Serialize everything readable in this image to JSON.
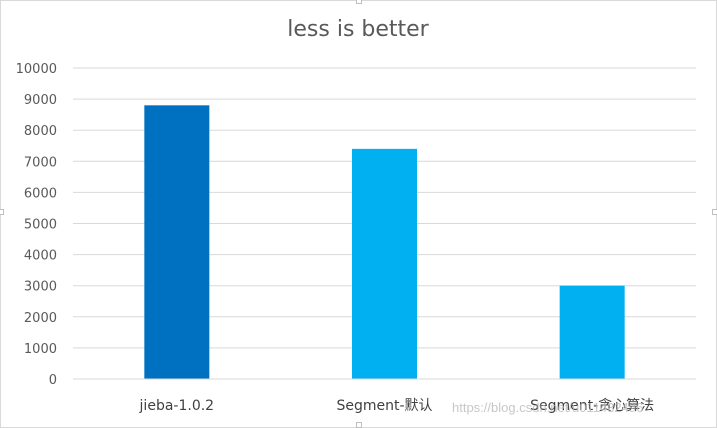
{
  "chart_data": {
    "type": "bar",
    "title": "less is better",
    "categories": [
      "jieba-1.0.2",
      "Segment-默认",
      "Segment-贪心算法"
    ],
    "values": [
      8800,
      7400,
      3000
    ],
    "bar_colors": [
      "#0070c0",
      "#00b0f0",
      "#00b0f0"
    ],
    "ylim": [
      0,
      10000
    ],
    "yticks": [
      0,
      1000,
      2000,
      3000,
      4000,
      5000,
      6000,
      7000,
      8000,
      9000,
      10000
    ],
    "grid": true,
    "legend": "none"
  },
  "watermark": "https://blog.csdn.net/u011432496"
}
